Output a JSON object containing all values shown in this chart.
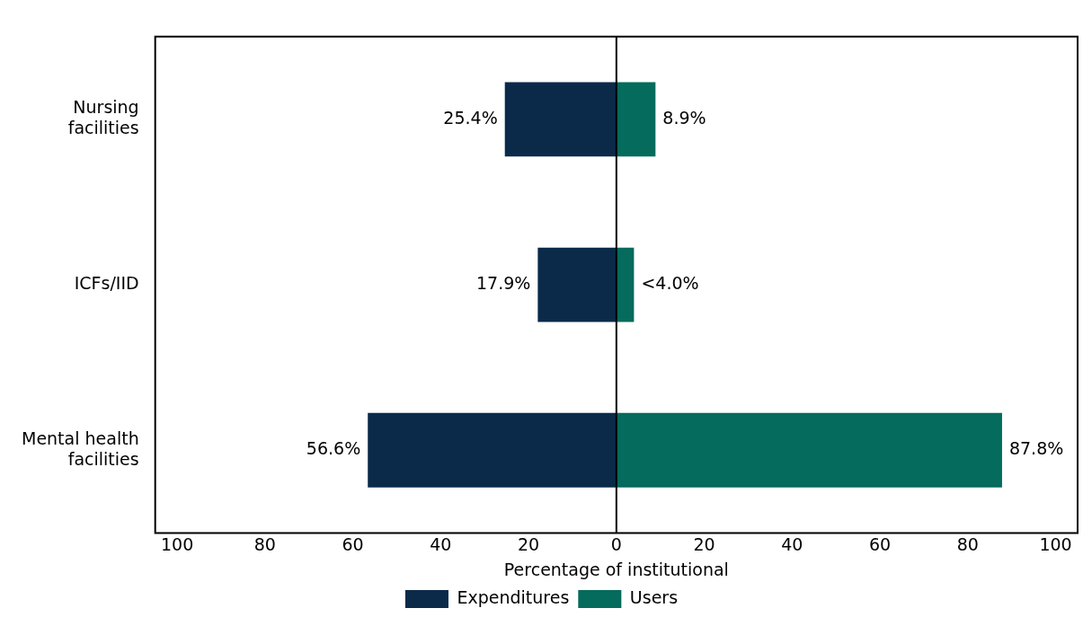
{
  "chart_data": {
    "type": "bar",
    "orientation": "horizontal",
    "categories": [
      "Nursing facilities",
      "ICFs/IID",
      "Mental health facilities"
    ],
    "series": [
      {
        "name": "Expenditures",
        "color": "#0b2a4a",
        "values": [
          25.4,
          17.9,
          56.6
        ],
        "base": [
          -25.4,
          -17.9,
          -56.6
        ],
        "value_labels": [
          "25.4%",
          "17.9%",
          "56.6%"
        ]
      },
      {
        "name": "Users",
        "color": "#056b5c",
        "values": [
          8.9,
          4.0,
          87.8
        ],
        "value_labels": [
          "8.9%",
          "<4.0%",
          "87.8%"
        ]
      }
    ],
    "xlim": [
      -105,
      105
    ],
    "xticks": [
      {
        "value": -100,
        "label": "100"
      },
      {
        "value": -80,
        "label": "80"
      },
      {
        "value": -60,
        "label": "60"
      },
      {
        "value": -40,
        "label": "40"
      },
      {
        "value": -20,
        "label": "20"
      },
      0,
      20,
      40,
      60,
      80,
      100
    ],
    "xlabel": "Percentage of institutional",
    "ref_lines": [
      {
        "axis": "x",
        "value": 0,
        "color": "#000000"
      }
    ],
    "grid": false,
    "legend": "bottom"
  }
}
